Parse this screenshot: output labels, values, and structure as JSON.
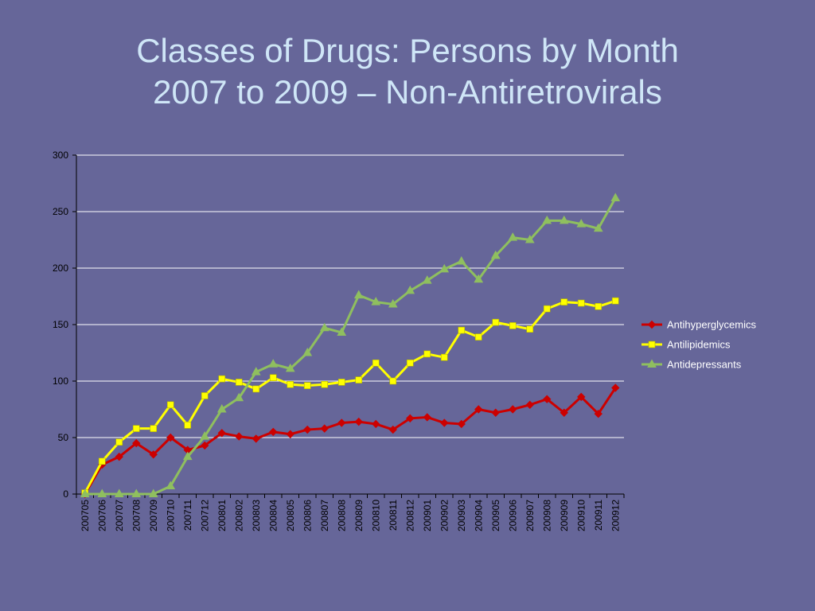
{
  "slide": {
    "title_line1": "Classes of Drugs: Persons by Month",
    "title_line2": "2007 to 2009 – Non-Antiretrovirals"
  },
  "colors": {
    "background": "#666699",
    "title": "#cfe6f7",
    "gridline": "#ffffff",
    "axis_text": "#000000",
    "legend_text": "#ffffff"
  },
  "chart_data": {
    "type": "line",
    "title": "",
    "xlabel": "",
    "ylabel": "",
    "ylim": [
      0,
      300
    ],
    "yticks": [
      0,
      50,
      100,
      150,
      200,
      250,
      300
    ],
    "grid": true,
    "legend_position": "right",
    "categories": [
      "200705",
      "200706",
      "200707",
      "200708",
      "200709",
      "200710",
      "200711",
      "200712",
      "200801",
      "200802",
      "200803",
      "200804",
      "200805",
      "200806",
      "200807",
      "200808",
      "200809",
      "200810",
      "200811",
      "200812",
      "200901",
      "200902",
      "200903",
      "200904",
      "200905",
      "200906",
      "200907",
      "200908",
      "200909",
      "200910",
      "200911",
      "200912"
    ],
    "series": [
      {
        "name": "Antihyperglycemics",
        "color": "#cc0000",
        "marker": "diamond",
        "values": [
          0,
          26,
          33,
          45,
          35,
          50,
          39,
          43,
          54,
          51,
          49,
          55,
          53,
          57,
          58,
          63,
          64,
          62,
          57,
          67,
          68,
          63,
          62,
          75,
          72,
          75,
          79,
          84,
          72,
          86,
          71,
          94
        ]
      },
      {
        "name": "Antilipidemics",
        "color": "#ffff00",
        "marker": "square",
        "values": [
          1,
          29,
          46,
          58,
          58,
          79,
          61,
          87,
          102,
          99,
          93,
          103,
          97,
          96,
          97,
          99,
          101,
          116,
          100,
          116,
          124,
          121,
          145,
          139,
          152,
          149,
          146,
          164,
          170,
          169,
          166,
          171
        ]
      },
      {
        "name": "Antidepressants",
        "color": "#8fbf5f",
        "marker": "triangle",
        "values": [
          0,
          0,
          0,
          0,
          0,
          7,
          33,
          51,
          75,
          85,
          108,
          115,
          111,
          125,
          147,
          143,
          176,
          170,
          168,
          180,
          189,
          199,
          206,
          190,
          211,
          227,
          225,
          242,
          242,
          239,
          235,
          262
        ]
      }
    ]
  }
}
